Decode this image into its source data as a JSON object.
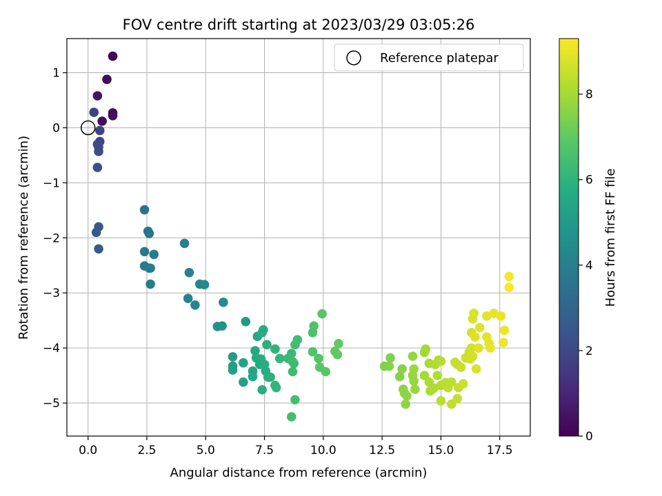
{
  "chart_data": {
    "type": "scatter",
    "title": "FOV centre drift starting at 2023/03/29 03:05:26",
    "xlabel": "Angular distance from reference (arcmin)",
    "ylabel": "Rotation from reference (arcmin)",
    "xlim": [
      -0.9,
      18.8
    ],
    "ylim": [
      -5.6,
      1.62
    ],
    "x_ticks": [
      0.0,
      2.5,
      5.0,
      7.5,
      10.0,
      12.5,
      15.0,
      17.5
    ],
    "x_tick_labels": [
      "0.0",
      "2.5",
      "5.0",
      "7.5",
      "10.0",
      "12.5",
      "15.0",
      "17.5"
    ],
    "y_ticks": [
      -5,
      -4,
      -3,
      -2,
      -1,
      0,
      1
    ],
    "y_tick_labels": [
      "−5",
      "−4",
      "−3",
      "−2",
      "−1",
      "0",
      "1"
    ],
    "grid": true,
    "legend": {
      "position": "top-right",
      "entries": [
        "Reference platepar"
      ]
    },
    "colorbar": {
      "label": "Hours from first FF file",
      "range": [
        0,
        9.3
      ],
      "ticks": [
        0,
        2,
        4,
        6,
        8
      ],
      "tick_labels": [
        "0",
        "2",
        "4",
        "6",
        "8"
      ],
      "colormap": "viridis"
    },
    "reference": {
      "x": 0,
      "y": 0,
      "name": "Reference platepar"
    },
    "points": [
      {
        "x": 1.05,
        "y": 1.3,
        "h": 0.1
      },
      {
        "x": 0.8,
        "y": 0.88,
        "h": 0.2
      },
      {
        "x": 1.05,
        "y": 0.27,
        "h": 0.25
      },
      {
        "x": 1.05,
        "y": 0.22,
        "h": 0.3
      },
      {
        "x": 0.6,
        "y": 0.12,
        "h": 0.35
      },
      {
        "x": 0.4,
        "y": 0.58,
        "h": 0.5
      },
      {
        "x": 0.25,
        "y": 0.28,
        "h": 1.8
      },
      {
        "x": 0.5,
        "y": -0.05,
        "h": 1.9
      },
      {
        "x": 0.5,
        "y": -0.25,
        "h": 1.95
      },
      {
        "x": 0.4,
        "y": -0.3,
        "h": 2.0
      },
      {
        "x": 0.45,
        "y": -0.35,
        "h": 2.05
      },
      {
        "x": 0.45,
        "y": -0.43,
        "h": 2.1
      },
      {
        "x": 0.4,
        "y": -0.72,
        "h": 2.2
      },
      {
        "x": 0.35,
        "y": -1.9,
        "h": 2.5
      },
      {
        "x": 0.45,
        "y": -1.8,
        "h": 2.55
      },
      {
        "x": 0.45,
        "y": -2.2,
        "h": 2.6
      },
      {
        "x": 2.4,
        "y": -1.49,
        "h": 3.5
      },
      {
        "x": 2.55,
        "y": -1.88,
        "h": 3.6
      },
      {
        "x": 2.6,
        "y": -1.92,
        "h": 3.6
      },
      {
        "x": 2.4,
        "y": -2.25,
        "h": 3.7
      },
      {
        "x": 2.8,
        "y": -2.3,
        "h": 3.75
      },
      {
        "x": 2.4,
        "y": -2.51,
        "h": 3.8
      },
      {
        "x": 2.6,
        "y": -2.55,
        "h": 3.85
      },
      {
        "x": 2.65,
        "y": -2.55,
        "h": 3.85
      },
      {
        "x": 2.65,
        "y": -2.84,
        "h": 3.9
      },
      {
        "x": 4.1,
        "y": -2.1,
        "h": 4.0
      },
      {
        "x": 4.3,
        "y": -2.63,
        "h": 4.1
      },
      {
        "x": 4.25,
        "y": -3.1,
        "h": 4.15
      },
      {
        "x": 4.55,
        "y": -3.22,
        "h": 4.2
      },
      {
        "x": 4.75,
        "y": -2.84,
        "h": 4.25
      },
      {
        "x": 4.95,
        "y": -2.85,
        "h": 4.3
      },
      {
        "x": 5.75,
        "y": -3.17,
        "h": 4.5
      },
      {
        "x": 5.5,
        "y": -3.61,
        "h": 4.7
      },
      {
        "x": 5.7,
        "y": -3.6,
        "h": 4.75
      },
      {
        "x": 6.7,
        "y": -3.52,
        "h": 5.0
      },
      {
        "x": 6.15,
        "y": -4.16,
        "h": 5.1
      },
      {
        "x": 6.15,
        "y": -4.33,
        "h": 5.15
      },
      {
        "x": 6.15,
        "y": -4.4,
        "h": 5.2
      },
      {
        "x": 6.6,
        "y": -4.27,
        "h": 5.3
      },
      {
        "x": 6.6,
        "y": -4.62,
        "h": 5.35
      },
      {
        "x": 7.0,
        "y": -4.42,
        "h": 5.4
      },
      {
        "x": 7.0,
        "y": -4.52,
        "h": 5.45
      },
      {
        "x": 7.1,
        "y": -4.05,
        "h": 5.5
      },
      {
        "x": 7.2,
        "y": -3.79,
        "h": 5.55
      },
      {
        "x": 7.15,
        "y": -4.18,
        "h": 5.6
      },
      {
        "x": 7.3,
        "y": -4.3,
        "h": 5.6
      },
      {
        "x": 7.35,
        "y": -4.2,
        "h": 5.65
      },
      {
        "x": 7.45,
        "y": -3.67,
        "h": 5.7
      },
      {
        "x": 7.4,
        "y": -3.72,
        "h": 5.7
      },
      {
        "x": 7.5,
        "y": -4.3,
        "h": 5.75
      },
      {
        "x": 7.55,
        "y": -4.42,
        "h": 5.8
      },
      {
        "x": 7.4,
        "y": -4.76,
        "h": 5.8
      },
      {
        "x": 7.6,
        "y": -3.94,
        "h": 5.85
      },
      {
        "x": 7.65,
        "y": -4.53,
        "h": 5.9
      },
      {
        "x": 7.75,
        "y": -4.53,
        "h": 5.9
      },
      {
        "x": 7.95,
        "y": -4.02,
        "h": 6.0
      },
      {
        "x": 7.95,
        "y": -4.68,
        "h": 6.05
      },
      {
        "x": 8.0,
        "y": -4.72,
        "h": 6.05
      },
      {
        "x": 8.15,
        "y": -4.19,
        "h": 6.1
      },
      {
        "x": 8.5,
        "y": -4.19,
        "h": 6.2
      },
      {
        "x": 8.65,
        "y": -4.1,
        "h": 6.25
      },
      {
        "x": 8.7,
        "y": -4.25,
        "h": 6.3
      },
      {
        "x": 8.75,
        "y": -4.28,
        "h": 6.3
      },
      {
        "x": 8.7,
        "y": -4.43,
        "h": 6.35
      },
      {
        "x": 8.8,
        "y": -3.94,
        "h": 6.4
      },
      {
        "x": 8.9,
        "y": -3.85,
        "h": 6.4
      },
      {
        "x": 8.8,
        "y": -4.94,
        "h": 6.45
      },
      {
        "x": 8.65,
        "y": -5.25,
        "h": 6.45
      },
      {
        "x": 9.55,
        "y": -3.72,
        "h": 6.6
      },
      {
        "x": 9.6,
        "y": -3.6,
        "h": 6.65
      },
      {
        "x": 9.55,
        "y": -4.07,
        "h": 6.7
      },
      {
        "x": 9.8,
        "y": -4.19,
        "h": 6.75
      },
      {
        "x": 9.85,
        "y": -4.35,
        "h": 6.8
      },
      {
        "x": 9.95,
        "y": -3.38,
        "h": 6.8
      },
      {
        "x": 10.1,
        "y": -4.43,
        "h": 6.85
      },
      {
        "x": 10.5,
        "y": -4.06,
        "h": 6.95
      },
      {
        "x": 10.6,
        "y": -4.12,
        "h": 7.0
      },
      {
        "x": 10.65,
        "y": -3.92,
        "h": 7.0
      },
      {
        "x": 12.6,
        "y": -4.33,
        "h": 7.4
      },
      {
        "x": 12.85,
        "y": -4.18,
        "h": 7.45
      },
      {
        "x": 12.8,
        "y": -4.33,
        "h": 7.5
      },
      {
        "x": 13.25,
        "y": -4.52,
        "h": 7.55
      },
      {
        "x": 13.35,
        "y": -4.38,
        "h": 7.6
      },
      {
        "x": 13.4,
        "y": -4.75,
        "h": 7.65
      },
      {
        "x": 13.45,
        "y": -4.82,
        "h": 7.65
      },
      {
        "x": 13.5,
        "y": -5.02,
        "h": 7.7
      },
      {
        "x": 13.55,
        "y": -4.87,
        "h": 7.7
      },
      {
        "x": 13.8,
        "y": -4.15,
        "h": 7.75
      },
      {
        "x": 13.8,
        "y": -4.5,
        "h": 7.8
      },
      {
        "x": 13.85,
        "y": -4.6,
        "h": 7.8
      },
      {
        "x": 13.9,
        "y": -4.75,
        "h": 7.85
      },
      {
        "x": 13.85,
        "y": -4.38,
        "h": 7.85
      },
      {
        "x": 14.3,
        "y": -4.08,
        "h": 7.95
      },
      {
        "x": 14.3,
        "y": -4.5,
        "h": 8.0
      },
      {
        "x": 14.35,
        "y": -4.02,
        "h": 8.0
      },
      {
        "x": 14.5,
        "y": -4.28,
        "h": 8.05
      },
      {
        "x": 14.5,
        "y": -4.62,
        "h": 8.1
      },
      {
        "x": 14.55,
        "y": -4.78,
        "h": 8.1
      },
      {
        "x": 14.7,
        "y": -4.73,
        "h": 8.15
      },
      {
        "x": 14.75,
        "y": -4.3,
        "h": 8.15
      },
      {
        "x": 14.85,
        "y": -4.5,
        "h": 8.2
      },
      {
        "x": 14.9,
        "y": -4.22,
        "h": 8.2
      },
      {
        "x": 15.0,
        "y": -4.24,
        "h": 8.25
      },
      {
        "x": 15.0,
        "y": -4.68,
        "h": 8.25
      },
      {
        "x": 15.0,
        "y": -4.96,
        "h": 8.3
      },
      {
        "x": 15.2,
        "y": -4.63,
        "h": 8.3
      },
      {
        "x": 15.3,
        "y": -4.72,
        "h": 8.35
      },
      {
        "x": 15.45,
        "y": -4.62,
        "h": 8.35
      },
      {
        "x": 15.45,
        "y": -5.02,
        "h": 8.4
      },
      {
        "x": 15.6,
        "y": -4.26,
        "h": 8.45
      },
      {
        "x": 15.7,
        "y": -4.3,
        "h": 8.45
      },
      {
        "x": 15.7,
        "y": -4.92,
        "h": 8.5
      },
      {
        "x": 15.75,
        "y": -4.72,
        "h": 8.5
      },
      {
        "x": 15.85,
        "y": -4.35,
        "h": 8.55
      },
      {
        "x": 15.95,
        "y": -4.65,
        "h": 8.55
      },
      {
        "x": 16.05,
        "y": -4.18,
        "h": 8.6
      },
      {
        "x": 16.2,
        "y": -4.08,
        "h": 8.6
      },
      {
        "x": 16.3,
        "y": -4.0,
        "h": 8.65
      },
      {
        "x": 16.25,
        "y": -4.2,
        "h": 8.65
      },
      {
        "x": 16.35,
        "y": -4.15,
        "h": 8.7
      },
      {
        "x": 16.3,
        "y": -3.72,
        "h": 8.7
      },
      {
        "x": 16.4,
        "y": -3.37,
        "h": 8.75
      },
      {
        "x": 16.35,
        "y": -3.47,
        "h": 8.75
      },
      {
        "x": 16.45,
        "y": -3.8,
        "h": 8.8
      },
      {
        "x": 16.5,
        "y": -4.38,
        "h": 8.8
      },
      {
        "x": 16.6,
        "y": -4.0,
        "h": 8.85
      },
      {
        "x": 16.65,
        "y": -3.63,
        "h": 8.85
      },
      {
        "x": 16.95,
        "y": -3.42,
        "h": 8.9
      },
      {
        "x": 16.95,
        "y": -3.8,
        "h": 8.95
      },
      {
        "x": 17.05,
        "y": -3.92,
        "h": 8.95
      },
      {
        "x": 17.1,
        "y": -4.0,
        "h": 9.0
      },
      {
        "x": 17.25,
        "y": -3.37,
        "h": 9.0
      },
      {
        "x": 17.55,
        "y": -3.42,
        "h": 9.05
      },
      {
        "x": 17.65,
        "y": -3.9,
        "h": 9.1
      },
      {
        "x": 17.7,
        "y": -3.68,
        "h": 9.1
      },
      {
        "x": 17.9,
        "y": -2.7,
        "h": 9.2
      },
      {
        "x": 17.9,
        "y": -2.9,
        "h": 9.25
      }
    ]
  }
}
